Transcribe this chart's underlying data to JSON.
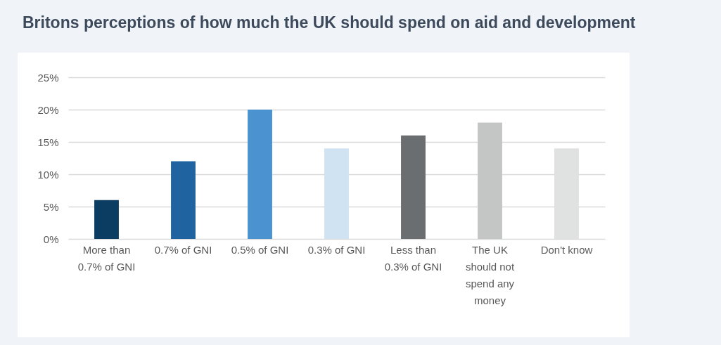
{
  "chart_data": {
    "type": "bar",
    "title": "Britons perceptions of how much the UK should spend on aid and development",
    "categories": [
      "More than 0.7% of GNI",
      "0.7% of GNI",
      "0.5% of GNI",
      "0.3% of GNI",
      "Less than 0.3% of GNI",
      "The UK should not spend any money",
      "Don't know"
    ],
    "values": [
      6,
      12,
      20,
      14,
      16,
      18,
      14
    ],
    "colors": [
      "#0b3d63",
      "#1f64a0",
      "#4a93d0",
      "#d0e3f3",
      "#6b6e70",
      "#c4c5c5",
      "#e0e1e1"
    ],
    "ylim": [
      0,
      25
    ],
    "yticks": [
      {
        "value": 0,
        "label": "0%"
      },
      {
        "value": 5,
        "label": "5%"
      },
      {
        "value": 10,
        "label": "10%"
      },
      {
        "value": 15,
        "label": "15%"
      },
      {
        "value": 20,
        "label": "20%"
      },
      {
        "value": 25,
        "label": "25%"
      }
    ],
    "grid": "y"
  }
}
